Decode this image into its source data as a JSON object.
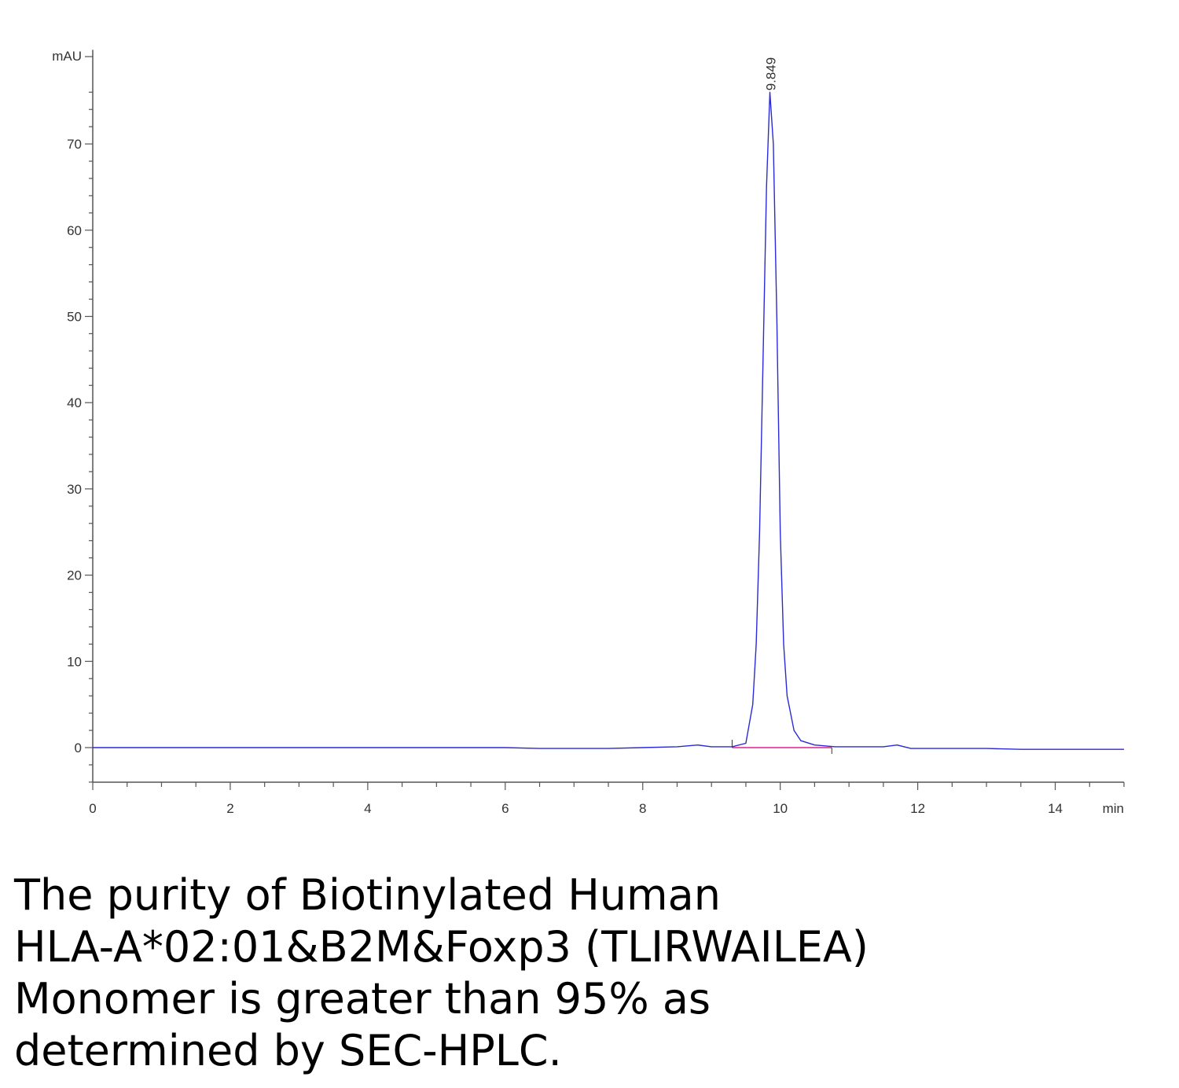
{
  "chart_data": {
    "type": "line",
    "ylabel": "mAU",
    "xlabel": "min",
    "xlim": [
      0,
      15
    ],
    "ylim": [
      -4,
      80
    ],
    "x_ticks": [
      0,
      2,
      4,
      6,
      8,
      10,
      12,
      14
    ],
    "y_ticks": [
      0,
      10,
      20,
      30,
      40,
      50,
      60,
      70
    ],
    "grid": false,
    "series": [
      {
        "color": "#2a2ad8",
        "x": [
          0,
          1,
          2,
          3,
          4,
          5,
          6,
          6.5,
          7,
          7.5,
          8,
          8.5,
          8.8,
          9.0,
          9.3,
          9.5,
          9.6,
          9.65,
          9.7,
          9.75,
          9.8,
          9.849,
          9.9,
          9.95,
          10.0,
          10.05,
          10.1,
          10.2,
          10.3,
          10.5,
          10.8,
          11.2,
          11.5,
          11.7,
          11.9,
          12.2,
          12.6,
          13,
          13.5,
          14,
          14.5,
          15
        ],
        "values": [
          0,
          0,
          0,
          0,
          0,
          0,
          0,
          -0.1,
          -0.1,
          -0.1,
          0,
          0.1,
          0.3,
          0.1,
          0.1,
          0.5,
          5,
          12,
          25,
          45,
          65,
          76,
          70,
          50,
          25,
          12,
          6,
          2,
          0.8,
          0.3,
          0.1,
          0.1,
          0.1,
          0.3,
          -0.1,
          -0.1,
          -0.1,
          -0.1,
          -0.2,
          -0.2,
          -0.2,
          -0.2
        ]
      }
    ],
    "baseline": {
      "color": "#e0208c",
      "x": [
        9.3,
        10.75
      ],
      "values": [
        0,
        0
      ]
    },
    "annotations": [
      {
        "text": "9.849",
        "x": 9.849,
        "y": 76
      }
    ]
  },
  "caption": {
    "line1": "The purity of Biotinylated Human",
    "line2": "HLA-A*02:01&B2M&Foxp3 (TLIRWAILEA)",
    "line3": "Monomer is greater than 95% as",
    "line4": "determined by SEC-HPLC."
  }
}
